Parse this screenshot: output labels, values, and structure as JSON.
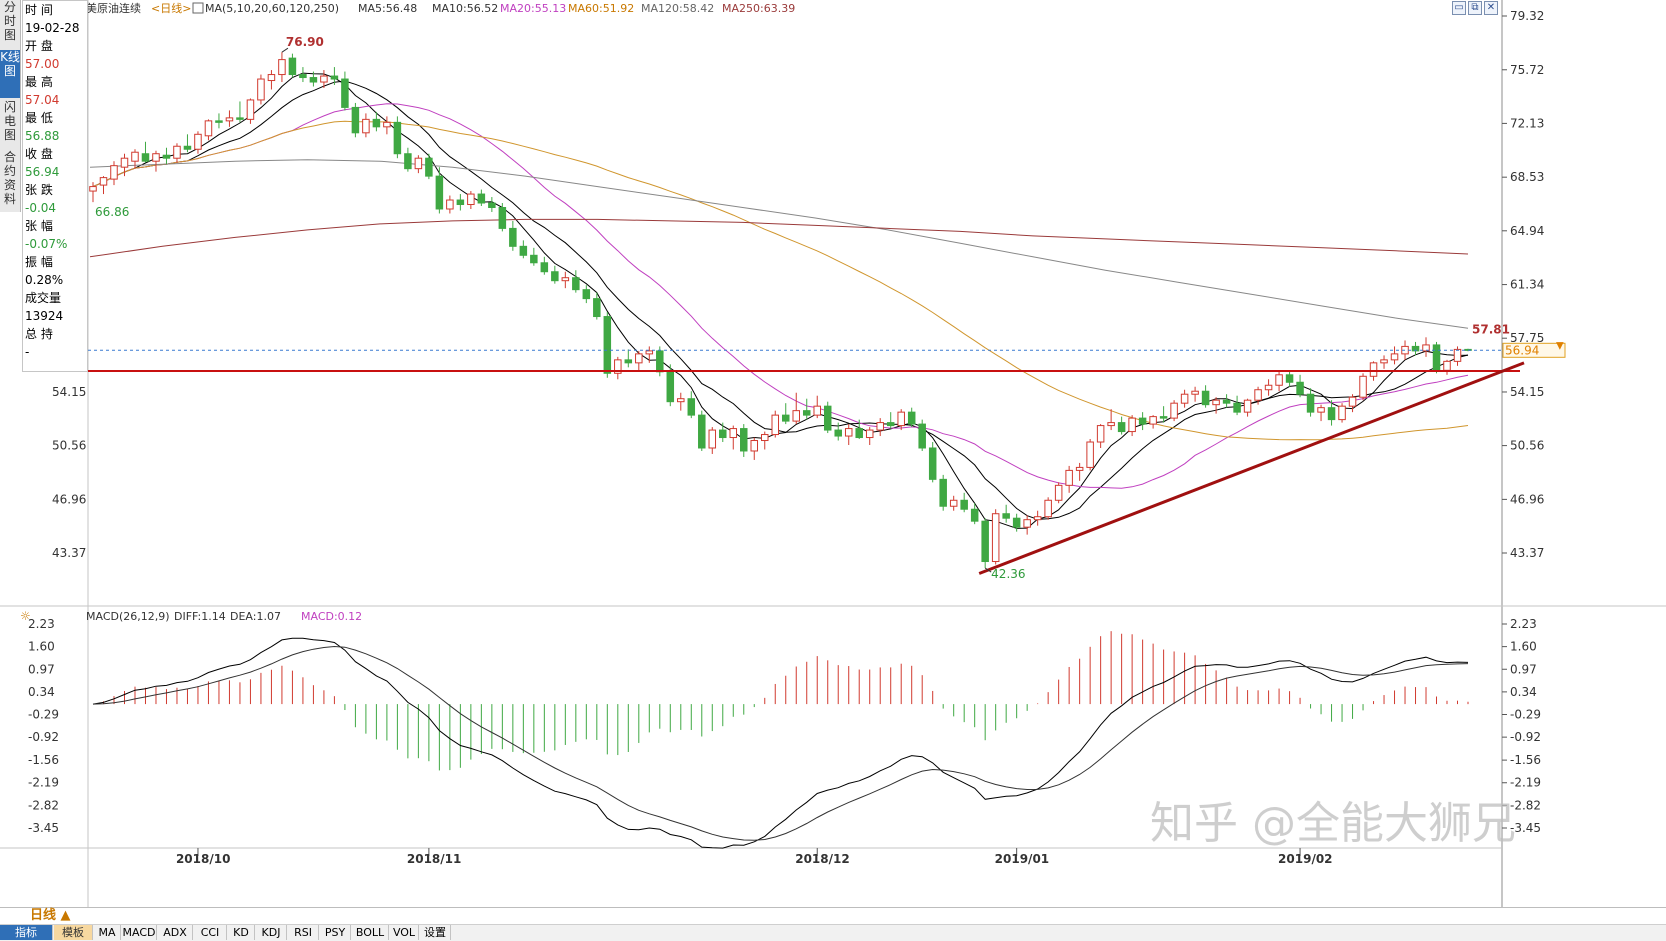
{
  "header": {
    "symbol": "美原油连续",
    "period_tag": "<日线>",
    "ma_params": "MA(5,10,20,60,120,250)",
    "ma5": "MA5:56.48",
    "ma10": "MA10:56.52",
    "ma20": "MA20:55.13",
    "ma60": "MA60:51.92",
    "ma120": "MA120:58.42",
    "ma250": "MA250:63.39"
  },
  "left_tabs": [
    "分时图",
    "K线图",
    "闪电图",
    "合约资料"
  ],
  "info_panel": {
    "rows": [
      {
        "label": "时 间",
        "value": "19-02-28",
        "color": "#000000"
      },
      {
        "label": "开 盘",
        "value": "57.00",
        "color": "#d13a2f"
      },
      {
        "label": "最 高",
        "value": "57.04",
        "color": "#d13a2f"
      },
      {
        "label": "最 低",
        "value": "56.88",
        "color": "#2e9a3a"
      },
      {
        "label": "收 盘",
        "value": "56.94",
        "color": "#2e9a3a"
      },
      {
        "label": "张 跌",
        "value": "-0.04",
        "color": "#2e9a3a"
      },
      {
        "label": "张 幅",
        "value": "-0.07%",
        "color": "#2e9a3a"
      },
      {
        "label": "振 幅",
        "value": "0.28%",
        "color": "#000000"
      },
      {
        "label": "成交量",
        "value": "13924",
        "color": "#000000"
      },
      {
        "label": "总 持",
        "value": "-",
        "color": "#000000"
      }
    ]
  },
  "price_axis_ticks": [
    "79.32",
    "75.72",
    "72.13",
    "68.53",
    "64.94",
    "61.34",
    "57.75",
    "54.15",
    "50.56",
    "46.96",
    "43.37"
  ],
  "price_axis_values": [
    79.32,
    75.72,
    72.13,
    68.53,
    64.94,
    61.34,
    57.75,
    54.15,
    50.56,
    46.96,
    43.37
  ],
  "left_axis_ticks": [
    "54.15",
    "50.56",
    "46.96",
    "43.37"
  ],
  "left_axis_values": [
    54.15,
    50.56,
    46.96,
    43.37
  ],
  "current_price_label": "56.94",
  "annotations": {
    "high": "76.90",
    "low": "42.36",
    "start_low": "66.86",
    "recent_high": "57.81"
  },
  "macd_header": {
    "params": "MACD(26,12,9)",
    "diff": "DIFF:1.14",
    "dea": "DEA:1.07",
    "macd": "MACD:0.12"
  },
  "macd_axis_ticks": [
    "2.23",
    "1.60",
    "0.97",
    "0.34",
    "-0.29",
    "-0.92",
    "-1.56",
    "-2.19",
    "-2.82",
    "-3.45"
  ],
  "macd_axis_values": [
    2.23,
    1.6,
    0.97,
    0.34,
    -0.29,
    -0.92,
    -1.56,
    -2.19,
    -2.82,
    -3.45
  ],
  "x_axis_labels": [
    "2018/10",
    "2018/11",
    "2018/12",
    "2019/01",
    "2019/02"
  ],
  "watermark": "知乎 @全能大狮兄",
  "toolbar": {
    "period": "日线 ▲",
    "tab_indicator": "指标",
    "tab_template": "模板",
    "indicators": [
      "MA",
      "MACD",
      "ADX",
      "CCI",
      "KD",
      "KDJ",
      "RSI",
      "PSY",
      "BOLL",
      "VOL",
      "设置"
    ]
  },
  "colors": {
    "up": "#d13a2f",
    "down": "#3fa843",
    "ma5": "#000000",
    "ma10": "#000000",
    "ma20": "#c040c0",
    "ma60": "#d0962e",
    "ma120": "#888888",
    "ma250": "#9a3a3a",
    "support_line": "#c81010",
    "trend_line": "#a01010",
    "dashed_price": "#3a7ad0"
  },
  "chart_data": {
    "type": "candlestick",
    "candles": [
      [
        67.6,
        68.2,
        66.86,
        67.9
      ],
      [
        68.0,
        68.6,
        67.4,
        68.5
      ],
      [
        68.4,
        69.6,
        68.0,
        69.3
      ],
      [
        69.2,
        70.1,
        68.6,
        69.8
      ],
      [
        69.6,
        70.4,
        69.1,
        70.2
      ],
      [
        70.1,
        70.9,
        69.5,
        69.6
      ],
      [
        69.6,
        70.3,
        68.9,
        70.1
      ],
      [
        70.0,
        70.5,
        69.4,
        69.8
      ],
      [
        69.8,
        70.8,
        69.5,
        70.6
      ],
      [
        70.6,
        71.4,
        70.2,
        70.4
      ],
      [
        70.4,
        71.6,
        70.1,
        71.4
      ],
      [
        71.3,
        72.4,
        71.0,
        72.3
      ],
      [
        72.3,
        72.8,
        71.8,
        72.2
      ],
      [
        72.3,
        73.0,
        71.9,
        72.5
      ],
      [
        72.5,
        73.6,
        72.2,
        72.4
      ],
      [
        72.4,
        73.8,
        72.1,
        73.7
      ],
      [
        73.7,
        75.4,
        73.4,
        75.1
      ],
      [
        75.0,
        75.7,
        74.4,
        75.4
      ],
      [
        75.4,
        76.9,
        74.9,
        76.4
      ],
      [
        76.5,
        76.8,
        75.2,
        75.4
      ],
      [
        75.4,
        75.9,
        74.9,
        75.2
      ],
      [
        75.2,
        75.6,
        74.6,
        74.9
      ],
      [
        74.9,
        75.7,
        74.5,
        75.3
      ],
      [
        75.3,
        75.9,
        74.7,
        75.1
      ],
      [
        75.1,
        75.6,
        73.0,
        73.2
      ],
      [
        73.2,
        73.5,
        71.2,
        71.5
      ],
      [
        71.5,
        72.8,
        71.2,
        72.4
      ],
      [
        72.4,
        72.9,
        71.6,
        71.9
      ],
      [
        71.9,
        72.6,
        71.4,
        72.2
      ],
      [
        72.2,
        72.6,
        69.8,
        70.1
      ],
      [
        70.1,
        70.5,
        68.9,
        69.1
      ],
      [
        69.1,
        70.0,
        68.8,
        69.8
      ],
      [
        69.8,
        70.1,
        68.4,
        68.6
      ],
      [
        68.6,
        69.2,
        66.1,
        66.4
      ],
      [
        66.4,
        67.3,
        66.1,
        67.0
      ],
      [
        67.0,
        67.4,
        66.3,
        66.7
      ],
      [
        66.7,
        67.6,
        66.4,
        67.4
      ],
      [
        67.4,
        67.7,
        66.6,
        66.8
      ],
      [
        66.8,
        67.2,
        66.2,
        66.5
      ],
      [
        66.5,
        66.8,
        64.9,
        65.1
      ],
      [
        65.1,
        65.6,
        63.6,
        63.9
      ],
      [
        63.9,
        64.3,
        63.1,
        63.3
      ],
      [
        63.3,
        63.8,
        62.6,
        62.8
      ],
      [
        62.8,
        63.2,
        62.0,
        62.2
      ],
      [
        62.2,
        62.6,
        61.4,
        61.6
      ],
      [
        61.6,
        62.2,
        61.1,
        61.8
      ],
      [
        61.8,
        62.3,
        60.8,
        61.0
      ],
      [
        61.0,
        61.3,
        60.1,
        60.4
      ],
      [
        60.4,
        60.8,
        59.0,
        59.2
      ],
      [
        59.2,
        59.5,
        55.1,
        55.4
      ],
      [
        55.4,
        56.5,
        55.0,
        56.3
      ],
      [
        56.3,
        57.0,
        55.8,
        56.1
      ],
      [
        56.1,
        56.9,
        55.5,
        56.7
      ],
      [
        56.7,
        57.2,
        56.1,
        56.9
      ],
      [
        56.9,
        57.2,
        55.2,
        55.5
      ],
      [
        55.5,
        56.0,
        53.2,
        53.5
      ],
      [
        53.5,
        54.1,
        52.9,
        53.7
      ],
      [
        53.7,
        54.2,
        52.4,
        52.6
      ],
      [
        52.6,
        52.9,
        50.2,
        50.4
      ],
      [
        50.4,
        51.8,
        50.0,
        51.6
      ],
      [
        51.6,
        52.1,
        50.8,
        51.1
      ],
      [
        51.1,
        51.9,
        50.3,
        51.7
      ],
      [
        51.7,
        52.0,
        49.8,
        50.2
      ],
      [
        50.2,
        51.1,
        49.6,
        50.9
      ],
      [
        50.9,
        51.5,
        50.3,
        51.3
      ],
      [
        51.3,
        52.9,
        51.1,
        52.6
      ],
      [
        52.6,
        53.4,
        52.0,
        52.2
      ],
      [
        52.2,
        54.1,
        52.0,
        52.9
      ],
      [
        52.9,
        53.7,
        52.3,
        52.6
      ],
      [
        52.6,
        53.9,
        52.4,
        53.2
      ],
      [
        53.2,
        53.5,
        51.4,
        51.6
      ],
      [
        51.6,
        52.1,
        50.9,
        51.2
      ],
      [
        51.2,
        52.0,
        50.6,
        51.7
      ],
      [
        51.7,
        52.3,
        51.0,
        51.1
      ],
      [
        51.1,
        51.8,
        50.6,
        51.6
      ],
      [
        51.6,
        52.4,
        51.2,
        52.1
      ],
      [
        52.1,
        52.8,
        51.7,
        51.9
      ],
      [
        51.9,
        53.0,
        51.6,
        52.8
      ],
      [
        52.8,
        53.1,
        51.8,
        52.0
      ],
      [
        52.0,
        52.3,
        50.2,
        50.4
      ],
      [
        50.4,
        50.8,
        48.1,
        48.3
      ],
      [
        48.3,
        48.6,
        46.2,
        46.5
      ],
      [
        46.5,
        47.2,
        46.2,
        46.9
      ],
      [
        46.9,
        47.4,
        46.1,
        46.3
      ],
      [
        46.3,
        46.7,
        45.3,
        45.5
      ],
      [
        45.5,
        45.7,
        42.36,
        42.8
      ],
      [
        42.8,
        46.3,
        42.6,
        46.0
      ],
      [
        46.0,
        46.6,
        45.4,
        45.7
      ],
      [
        45.7,
        46.0,
        44.8,
        45.1
      ],
      [
        45.1,
        45.9,
        44.6,
        45.6
      ],
      [
        45.6,
        46.2,
        45.2,
        45.8
      ],
      [
        45.8,
        47.1,
        45.6,
        46.9
      ],
      [
        46.9,
        48.1,
        46.7,
        47.9
      ],
      [
        47.9,
        49.2,
        47.4,
        48.9
      ],
      [
        48.9,
        49.4,
        48.2,
        49.1
      ],
      [
        49.1,
        51.0,
        48.9,
        50.8
      ],
      [
        50.8,
        52.0,
        50.4,
        51.9
      ],
      [
        51.9,
        53.0,
        51.6,
        52.1
      ],
      [
        52.1,
        52.5,
        51.3,
        51.5
      ],
      [
        51.5,
        52.6,
        51.2,
        52.4
      ],
      [
        52.4,
        52.8,
        51.6,
        52.0
      ],
      [
        52.0,
        52.6,
        51.7,
        52.5
      ],
      [
        52.5,
        53.2,
        52.1,
        52.4
      ],
      [
        52.4,
        53.6,
        52.2,
        53.4
      ],
      [
        53.4,
        54.3,
        53.1,
        54.0
      ],
      [
        54.0,
        54.5,
        53.5,
        54.2
      ],
      [
        54.2,
        54.6,
        53.1,
        53.3
      ],
      [
        53.3,
        53.8,
        52.7,
        53.6
      ],
      [
        53.6,
        54.0,
        53.1,
        53.4
      ],
      [
        53.4,
        53.9,
        52.6,
        52.8
      ],
      [
        52.8,
        53.7,
        52.5,
        53.6
      ],
      [
        53.6,
        54.5,
        53.3,
        54.3
      ],
      [
        54.3,
        55.0,
        53.9,
        54.6
      ],
      [
        54.6,
        55.5,
        54.2,
        55.3
      ],
      [
        55.3,
        55.6,
        54.5,
        54.8
      ],
      [
        54.8,
        55.3,
        53.8,
        54.0
      ],
      [
        54.0,
        54.4,
        52.5,
        52.8
      ],
      [
        52.8,
        53.3,
        52.2,
        53.1
      ],
      [
        53.1,
        53.6,
        51.9,
        52.3
      ],
      [
        52.3,
        53.4,
        52.1,
        53.2
      ],
      [
        53.2,
        54.0,
        52.8,
        53.8
      ],
      [
        53.8,
        55.4,
        53.6,
        55.2
      ],
      [
        55.2,
        56.2,
        54.9,
        56.1
      ],
      [
        56.1,
        56.6,
        55.7,
        56.3
      ],
      [
        56.3,
        57.2,
        56.0,
        56.7
      ],
      [
        56.7,
        57.6,
        56.3,
        57.2
      ],
      [
        57.2,
        57.5,
        56.6,
        56.9
      ],
      [
        56.9,
        57.81,
        56.5,
        57.3
      ],
      [
        57.3,
        57.5,
        55.4,
        55.6
      ],
      [
        55.6,
        56.3,
        55.3,
        56.2
      ],
      [
        56.2,
        57.2,
        55.9,
        57.0
      ],
      [
        57.0,
        57.04,
        56.88,
        56.94
      ]
    ]
  }
}
